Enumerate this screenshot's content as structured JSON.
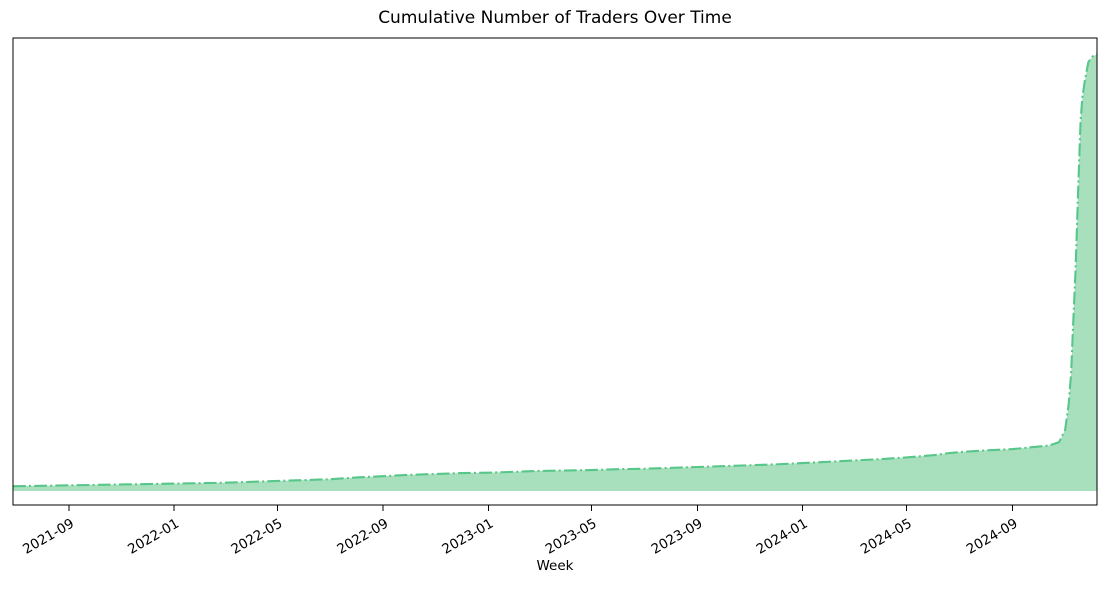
{
  "figure": {
    "background": "#ffffff"
  },
  "chart_data": {
    "type": "area",
    "title": "Cumulative Number of Traders Over Time",
    "xlabel": "Week",
    "ylabel": "",
    "series_name": "Cumulative number of traders",
    "line_style": "dashdot",
    "grid": false,
    "legend": "none",
    "y_axis_tick_labels_visible": false,
    "value_units": "percent of final cumulative total (source chart shows no y-axis tick labels)",
    "line_color": "#57c689",
    "fill_color": "#a8e0be",
    "spine_color": "#000000",
    "text_color": "#000000",
    "x_ticks": [
      "2021-09",
      "2022-01",
      "2022-05",
      "2022-09",
      "2023-01",
      "2023-05",
      "2023-09",
      "2024-01",
      "2024-05",
      "2024-09"
    ],
    "x_range": [
      "2021-06-28",
      "2024-12-08"
    ],
    "ylim_pct": [
      -3.2,
      103.7
    ],
    "x": [
      "2021-06-28",
      "2021-08-01",
      "2021-09-01",
      "2021-10-01",
      "2021-11-01",
      "2021-12-01",
      "2022-01-01",
      "2022-02-01",
      "2022-03-01",
      "2022-04-01",
      "2022-05-01",
      "2022-06-01",
      "2022-07-01",
      "2022-08-01",
      "2022-09-01",
      "2022-10-01",
      "2022-11-01",
      "2022-12-01",
      "2023-01-01",
      "2023-02-01",
      "2023-03-01",
      "2023-04-01",
      "2023-05-01",
      "2023-06-01",
      "2023-07-01",
      "2023-08-01",
      "2023-09-01",
      "2023-10-01",
      "2023-11-01",
      "2023-12-01",
      "2024-01-01",
      "2024-02-01",
      "2024-03-01",
      "2024-04-01",
      "2024-05-01",
      "2024-06-01",
      "2024-06-20",
      "2024-07-01",
      "2024-08-01",
      "2024-09-01",
      "2024-09-22",
      "2024-10-13",
      "2024-10-25",
      "2024-11-01",
      "2024-11-05",
      "2024-11-08",
      "2024-11-10",
      "2024-11-13",
      "2024-11-15",
      "2024-11-17",
      "2024-11-19",
      "2024-11-21",
      "2024-11-24",
      "2024-11-28",
      "2024-12-03",
      "2024-12-08"
    ],
    "values": [
      1.1,
      1.2,
      1.3,
      1.4,
      1.5,
      1.6,
      1.7,
      1.8,
      1.9,
      2.1,
      2.3,
      2.5,
      2.7,
      3.1,
      3.4,
      3.7,
      3.9,
      4.1,
      4.2,
      4.4,
      4.6,
      4.7,
      4.8,
      5.0,
      5.1,
      5.3,
      5.5,
      5.7,
      5.9,
      6.1,
      6.4,
      6.7,
      7.0,
      7.3,
      7.7,
      8.2,
      8.7,
      8.9,
      9.3,
      9.6,
      10.0,
      10.4,
      11.2,
      14.0,
      19.7,
      27.0,
      36.8,
      50.0,
      62.0,
      74.0,
      84.9,
      90.0,
      94.1,
      98.2,
      99.5,
      100.0
    ]
  }
}
